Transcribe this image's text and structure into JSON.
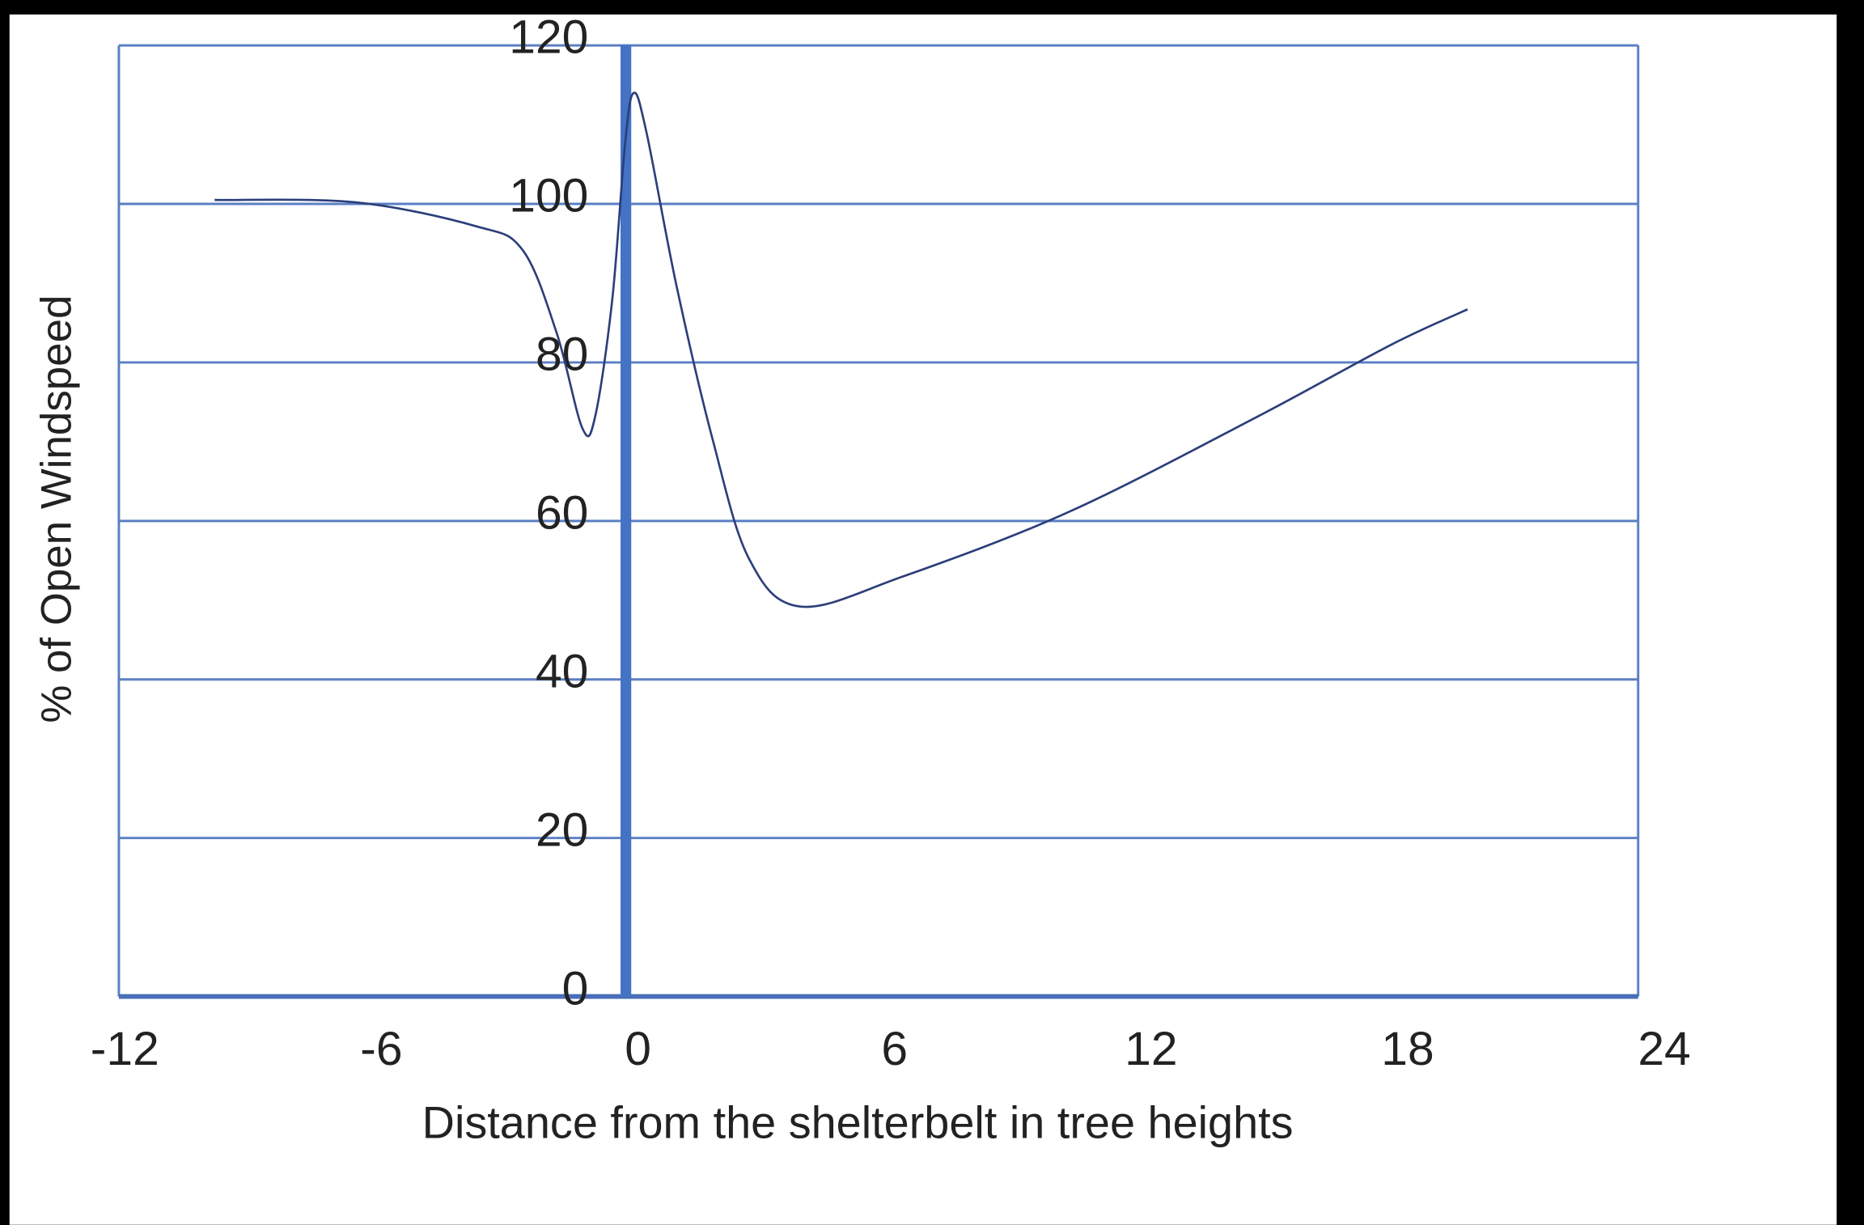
{
  "chart_data": {
    "type": "line",
    "x_label": "Distance from the shelterbelt in tree heights",
    "y_label": "% of Open Windspeed",
    "series": [
      {
        "color": "#2c3e7a",
        "x": [
          -9.9,
          -6.6,
          -3.8,
          -2.7,
          -1.9,
          -1.3,
          -1.0,
          -0.6,
          -0.3,
          -0.1,
          0.2,
          0.9,
          1.75,
          2.6,
          3.8,
          6.2,
          10.1,
          14.5,
          17.6,
          19.4
        ],
        "values": [
          100.5,
          100.2,
          97.2,
          94.2,
          83.7,
          71.7,
          73.2,
          88,
          107.7,
          114,
          109,
          89.7,
          70.2,
          55.2,
          49.2,
          53,
          61.2,
          73.2,
          82.2,
          86.7
        ]
      }
    ],
    "xlim": [
      -12,
      24
    ],
    "xticks": [
      -12,
      -6,
      0,
      6,
      12,
      18,
      24
    ],
    "ylim": [
      0,
      120
    ],
    "yticks": [
      0,
      20,
      40,
      60,
      80,
      100,
      120
    ],
    "grid": true
  }
}
